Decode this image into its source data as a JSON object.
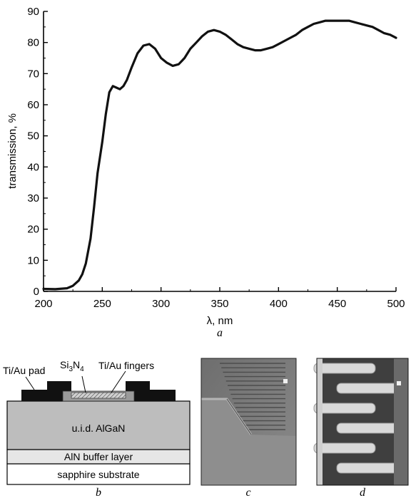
{
  "chart_data": {
    "type": "line",
    "xlabel": "λ, nm",
    "ylabel": "transmission, %",
    "xlim": [
      200,
      500
    ],
    "ylim": [
      0,
      90
    ],
    "xticks": [
      200,
      250,
      300,
      350,
      400,
      450,
      500
    ],
    "yticks": [
      0,
      10,
      20,
      30,
      40,
      50,
      60,
      70,
      80,
      90
    ],
    "grid": false,
    "panel_label": "a",
    "series": [
      {
        "x": [
          200,
          210,
          220,
          225,
          230,
          233,
          236,
          240,
          243,
          246,
          250,
          253,
          256,
          259,
          262,
          265,
          268,
          271,
          275,
          280,
          285,
          290,
          295,
          300,
          305,
          310,
          315,
          320,
          325,
          330,
          335,
          340,
          345,
          350,
          355,
          360,
          365,
          370,
          375,
          380,
          385,
          390,
          395,
          400,
          405,
          410,
          415,
          420,
          425,
          430,
          435,
          440,
          445,
          450,
          455,
          460,
          465,
          470,
          475,
          480,
          485,
          490,
          495,
          500
        ],
        "y": [
          0.8,
          0.7,
          1.0,
          1.8,
          3.5,
          5.5,
          9.0,
          17.0,
          27.0,
          38.0,
          48.0,
          57.0,
          64.0,
          66.0,
          65.5,
          65.0,
          66.0,
          68.0,
          72.0,
          76.5,
          79.0,
          79.5,
          78.0,
          75.0,
          73.5,
          72.5,
          73.0,
          75.0,
          78.0,
          80.0,
          82.0,
          83.5,
          84.0,
          83.5,
          82.5,
          81.0,
          79.5,
          78.5,
          78.0,
          77.5,
          77.5,
          78.0,
          78.5,
          79.5,
          80.5,
          81.5,
          82.5,
          84.0,
          85.0,
          86.0,
          86.5,
          87.0,
          87.0,
          87.0,
          87.0,
          87.0,
          86.5,
          86.0,
          85.5,
          85.0,
          84.0,
          83.0,
          82.5,
          81.5
        ]
      }
    ]
  },
  "figure_b": {
    "label": "b",
    "ti_au_pad": "Ti/Au pad",
    "si3n4_main": "Si",
    "si3n4_sub1": "3",
    "si3n4_n": "N",
    "si3n4_sub2": "4",
    "ti_au_fingers": "Ti/Au fingers",
    "algan": "u.i.d. AlGaN",
    "aln": "AlN buffer layer",
    "substrate": "sapphire substrate"
  },
  "figure_c": {
    "label": "c"
  },
  "figure_d": {
    "label": "d"
  }
}
